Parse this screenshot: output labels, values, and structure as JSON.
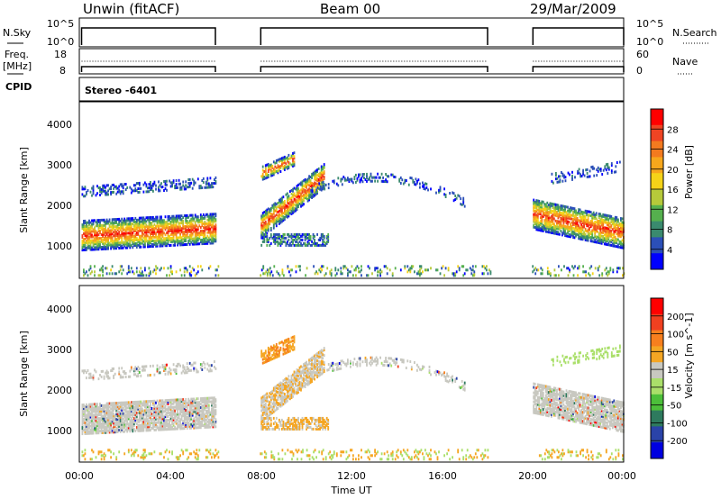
{
  "header": {
    "site": "Unwin (fitACF)",
    "beam": "Beam 00",
    "date": "29/Mar/2009"
  },
  "mode_label": "Stereo -6401",
  "left_labels": {
    "nsky": "N.Sky",
    "freq_line1": "Freq.",
    "freq_line2": "[MHz]",
    "cpid": "CPID"
  },
  "right_labels": {
    "nsearch": "N.Search",
    "nave": "Nave"
  },
  "strip_ticks": {
    "nsky_top": "10^5",
    "nsky_bottom": "10^0",
    "freq_top": "18",
    "freq_bottom": "8",
    "nave_top": "60",
    "nave_bottom": "0"
  },
  "colors": {
    "power": [
      "#0000ff",
      "#2b4fb8",
      "#3a8a6e",
      "#55b04e",
      "#b6c93a",
      "#f5d318",
      "#f7a71c",
      "#f37a1f",
      "#ef4423",
      "#ff0000"
    ],
    "velocity": [
      "#ff0000",
      "#f04020",
      "#f77f1e",
      "#f5a623",
      "#c8c8c0",
      "#aadf6a",
      "#4cbf3a",
      "#2e7a5e",
      "#2a43a8",
      "#0000e0"
    ]
  },
  "chart_data": [
    {
      "type": "heatmap",
      "name": "power",
      "ylabel": "Slant Range [km]",
      "xlabel": "Time UT",
      "ylim": [
        200,
        4600
      ],
      "xlim": [
        0,
        24
      ],
      "yticks": [
        "1000",
        "2000",
        "3000",
        "4000"
      ],
      "xticks": [
        "00:00",
        "04:00",
        "08:00",
        "12:00",
        "16:00",
        "20:00",
        "00:00"
      ],
      "colorbar": {
        "label": "Power [dB]",
        "range": [
          0,
          32
        ],
        "ticks": [
          "4",
          "8",
          "12",
          "16",
          "20",
          "24",
          "28"
        ]
      },
      "data_gaps_hours": [
        [
          6.1,
          7.9
        ],
        [
          18.1,
          19.9
        ]
      ]
    },
    {
      "type": "heatmap",
      "name": "velocity",
      "ylabel": "Slant Range [km]",
      "xlabel": "Time UT",
      "ylim": [
        200,
        4600
      ],
      "xlim": [
        0,
        24
      ],
      "yticks": [
        "1000",
        "2000",
        "3000",
        "4000"
      ],
      "xticks": [
        "00:00",
        "04:00",
        "08:00",
        "12:00",
        "16:00",
        "20:00",
        "00:00"
      ],
      "colorbar": {
        "label": "Velocity [m s^-1]",
        "ticks": [
          "200",
          "100",
          "50",
          "15",
          "-15",
          "-50",
          "-100",
          "-200"
        ]
      },
      "data_gaps_hours": [
        [
          6.1,
          7.9
        ],
        [
          18.1,
          19.9
        ]
      ]
    }
  ]
}
